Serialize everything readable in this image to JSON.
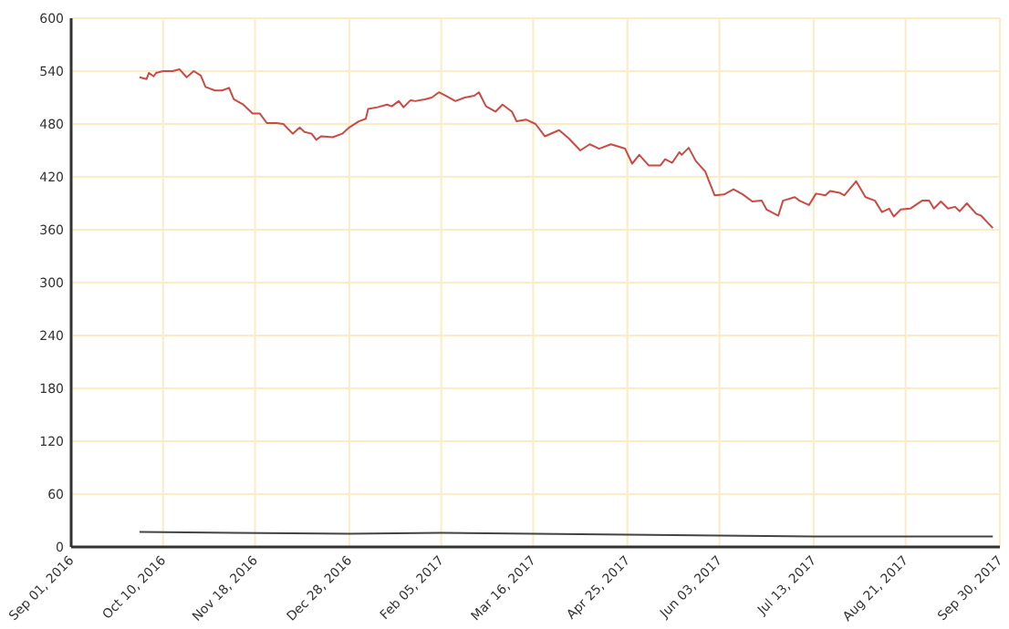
{
  "chart_data": {
    "type": "line",
    "xlim": [
      "2016-09-01",
      "2017-09-30"
    ],
    "xticks": [
      {
        "value": "2016-09-01",
        "label": "Sep 01, 2016"
      },
      {
        "value": "2016-10-10",
        "label": "Oct 10, 2016"
      },
      {
        "value": "2016-11-18",
        "label": "Nov 18, 2016"
      },
      {
        "value": "2016-12-28",
        "label": "Dec 28, 2016"
      },
      {
        "value": "2017-02-05",
        "label": "Feb 05, 2017"
      },
      {
        "value": "2017-03-16",
        "label": "Mar 16, 2017"
      },
      {
        "value": "2017-04-25",
        "label": "Apr 25, 2017"
      },
      {
        "value": "2017-06-03",
        "label": "Jun 03, 2017"
      },
      {
        "value": "2017-07-13",
        "label": "Jul 13, 2017"
      },
      {
        "value": "2017-08-21",
        "label": "Aug 21, 2017"
      },
      {
        "value": "2017-09-30",
        "label": "Sep 30, 2017"
      }
    ],
    "ylim": [
      0,
      600
    ],
    "yticks": [
      0,
      60,
      120,
      180,
      240,
      300,
      360,
      420,
      480,
      540,
      600
    ],
    "grid": true,
    "series": [
      {
        "color": "#cc4a44",
        "x": [
          "2016-09-30",
          "2016-10-03",
          "2016-10-04",
          "2016-10-06",
          "2016-10-07",
          "2016-10-10",
          "2016-10-14",
          "2016-10-17",
          "2016-10-20",
          "2016-10-23",
          "2016-10-26",
          "2016-10-28",
          "2016-11-01",
          "2016-11-04",
          "2016-11-07",
          "2016-11-09",
          "2016-11-13",
          "2016-11-17",
          "2016-11-20",
          "2016-11-23",
          "2016-11-27",
          "2016-11-30",
          "2016-12-04",
          "2016-12-07",
          "2016-12-09",
          "2016-12-12",
          "2016-12-14",
          "2016-12-16",
          "2016-12-21",
          "2016-12-25",
          "2016-12-28",
          "2017-01-01",
          "2017-01-04",
          "2017-01-05",
          "2017-01-09",
          "2017-01-13",
          "2017-01-15",
          "2017-01-18",
          "2017-01-20",
          "2017-01-23",
          "2017-01-25",
          "2017-01-29",
          "2017-02-01",
          "2017-02-04",
          "2017-02-07",
          "2017-02-11",
          "2017-02-15",
          "2017-02-19",
          "2017-02-21",
          "2017-02-24",
          "2017-02-28",
          "2017-03-03",
          "2017-03-07",
          "2017-03-09",
          "2017-03-13",
          "2017-03-17",
          "2017-03-21",
          "2017-03-27",
          "2017-03-31",
          "2017-04-05",
          "2017-04-09",
          "2017-04-13",
          "2017-04-18",
          "2017-04-24",
          "2017-04-27",
          "2017-04-30",
          "2017-05-04",
          "2017-05-09",
          "2017-05-11",
          "2017-05-14",
          "2017-05-17",
          "2017-05-18",
          "2017-05-21",
          "2017-05-24",
          "2017-05-28",
          "2017-06-01",
          "2017-06-05",
          "2017-06-09",
          "2017-06-13",
          "2017-06-17",
          "2017-06-21",
          "2017-06-23",
          "2017-06-28",
          "2017-06-30",
          "2017-07-05",
          "2017-07-07",
          "2017-07-11",
          "2017-07-14",
          "2017-07-18",
          "2017-07-20",
          "2017-07-24",
          "2017-07-26",
          "2017-07-31",
          "2017-08-04",
          "2017-08-08",
          "2017-08-11",
          "2017-08-14",
          "2017-08-16",
          "2017-08-19",
          "2017-08-23",
          "2017-08-28",
          "2017-08-31",
          "2017-09-02",
          "2017-09-05",
          "2017-09-08",
          "2017-09-11",
          "2017-09-13",
          "2017-09-16",
          "2017-09-20",
          "2017-09-22",
          "2017-09-27"
        ],
        "values": [
          533,
          531,
          538,
          534,
          538,
          540,
          540,
          542,
          533,
          540,
          535,
          522,
          518,
          518,
          521,
          508,
          502,
          492,
          492,
          481,
          481,
          480,
          469,
          476,
          471,
          469,
          462,
          466,
          465,
          469,
          476,
          483,
          486,
          497,
          499,
          502,
          500,
          506,
          499,
          507,
          506,
          508,
          510,
          516,
          512,
          506,
          510,
          512,
          516,
          500,
          494,
          502,
          494,
          483,
          485,
          480,
          466,
          473,
          464,
          450,
          457,
          452,
          457,
          452,
          435,
          445,
          433,
          433,
          440,
          436,
          448,
          445,
          453,
          438,
          426,
          399,
          400,
          406,
          400,
          392,
          393,
          383,
          376,
          393,
          397,
          393,
          388,
          401,
          399,
          404,
          402,
          399,
          415,
          397,
          393,
          380,
          384,
          375,
          383,
          384,
          393,
          393,
          384,
          392,
          384,
          386,
          381,
          390,
          378,
          376,
          362
        ]
      },
      {
        "color": "#444444",
        "x": [
          "2016-09-30",
          "2016-12-28",
          "2017-02-05",
          "2017-03-16",
          "2017-06-03",
          "2017-07-13",
          "2017-08-21",
          "2017-09-27"
        ],
        "values": [
          17,
          15,
          16,
          15,
          13,
          12,
          12,
          12
        ]
      }
    ]
  }
}
